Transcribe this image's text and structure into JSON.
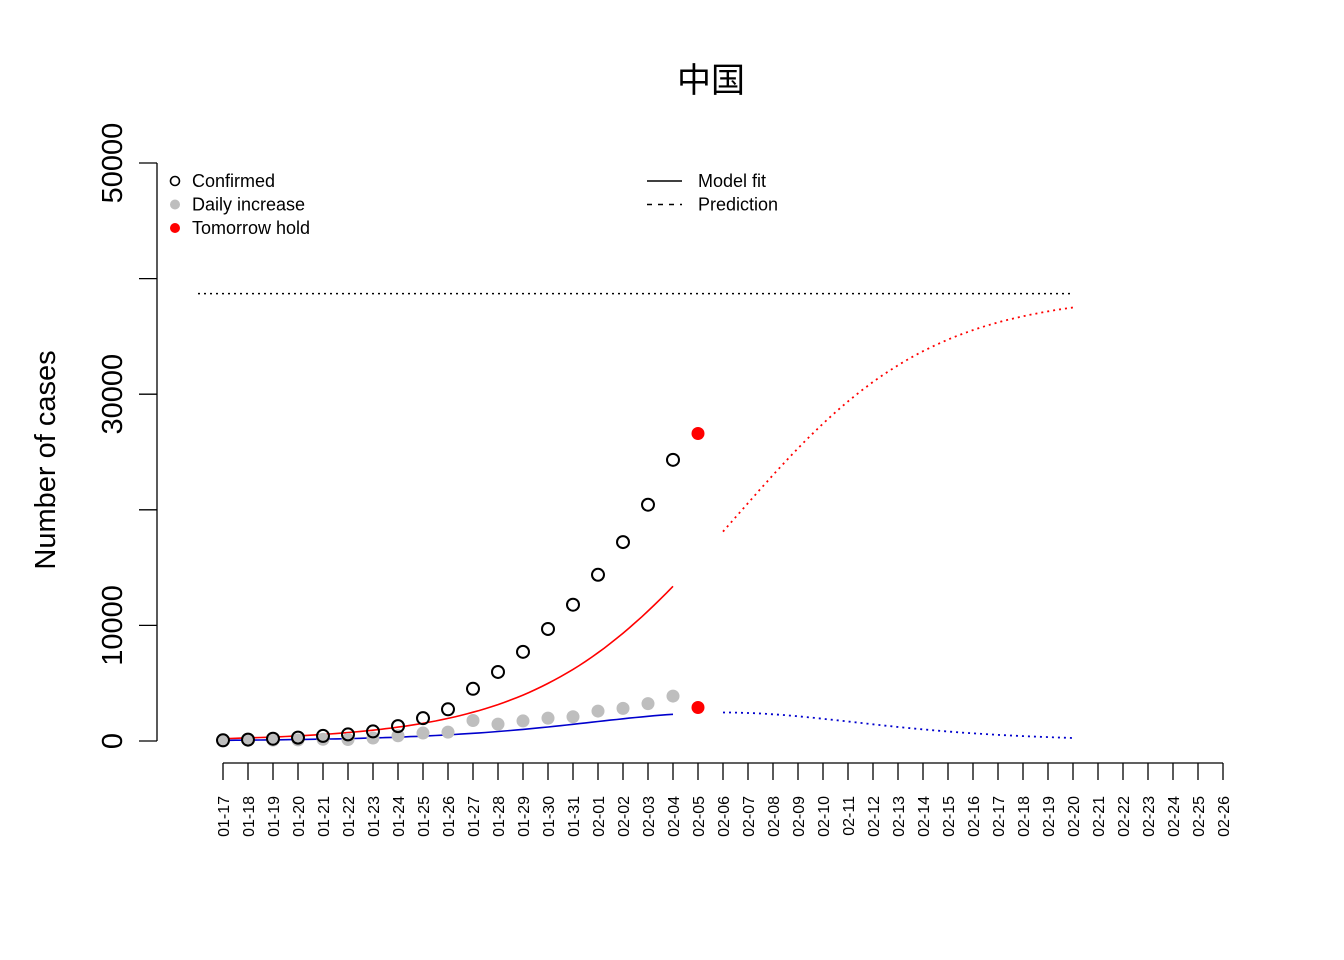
{
  "chart_data": {
    "type": "scatter",
    "title": "中国",
    "ylabel": "Number of cases",
    "xlabel": "",
    "ylim": [
      0,
      50000
    ],
    "y_ticks": [
      0,
      10000,
      30000,
      50000
    ],
    "y_minor_ticks": [
      20000,
      40000
    ],
    "y_tick_labels": [
      "0",
      "10000",
      "30000",
      "50000"
    ],
    "x_tick_labels": [
      "01-17",
      "01-18",
      "01-19",
      "01-20",
      "01-21",
      "01-22",
      "01-23",
      "01-24",
      "01-25",
      "01-26",
      "01-27",
      "01-28",
      "01-29",
      "01-30",
      "01-31",
      "02-01",
      "02-02",
      "02-03",
      "02-04",
      "02-05",
      "02-06",
      "02-07",
      "02-08",
      "02-09",
      "02-10",
      "02-11",
      "02-12",
      "02-13",
      "02-14",
      "02-15",
      "02-16",
      "02-17",
      "02-18",
      "02-19",
      "02-20",
      "02-21",
      "02-22",
      "02-23",
      "02-24",
      "02-25",
      "02-26"
    ],
    "grid": false,
    "legend_left": {
      "placement": "top-left",
      "entries": [
        {
          "label": "Confirmed",
          "marker": "open-circle",
          "color": "#000000"
        },
        {
          "label": "Daily increase",
          "marker": "filled-circle",
          "color": "#bebebe"
        },
        {
          "label": "Tomorrow hold",
          "marker": "filled-circle",
          "color": "#ff0000"
        }
      ]
    },
    "legend_right": {
      "placement": "top-center",
      "entries": [
        {
          "label": "Model fit",
          "line": "solid"
        },
        {
          "label": "Prediction",
          "line": "dashed"
        }
      ]
    },
    "confirmed": {
      "x": [
        "01-17",
        "01-18",
        "01-19",
        "01-20",
        "01-21",
        "01-22",
        "01-23",
        "01-24",
        "01-25",
        "01-26",
        "01-27",
        "01-28",
        "01-29",
        "01-30",
        "01-31",
        "02-01",
        "02-02",
        "02-03",
        "02-04"
      ],
      "values": [
        62,
        121,
        198,
        291,
        440,
        571,
        830,
        1287,
        1975,
        2744,
        4515,
        5974,
        7711,
        9692,
        11791,
        14380,
        17205,
        20438,
        24324
      ]
    },
    "daily_increase": {
      "x": [
        "01-17",
        "01-18",
        "01-19",
        "01-20",
        "01-21",
        "01-22",
        "01-23",
        "01-24",
        "01-25",
        "01-26",
        "01-27",
        "01-28",
        "01-29",
        "01-30",
        "01-31",
        "02-01",
        "02-02",
        "02-03",
        "02-04"
      ],
      "values": [
        0,
        59,
        77,
        93,
        149,
        131,
        259,
        457,
        688,
        769,
        1771,
        1459,
        1737,
        1981,
        2099,
        2589,
        2825,
        3233,
        3886
      ],
      "color": "#bebebe"
    },
    "tomorrow_hold": {
      "x": "02-05",
      "confirmed": 26600,
      "daily": 2900,
      "color": "#ff0000"
    },
    "asymptote": {
      "value": 38700,
      "x_from": "01-16",
      "x_to": "02-20",
      "style": "dotted",
      "color": "#000000"
    },
    "confirmed_fit": {
      "model": "logistic",
      "K": 38700,
      "r": 0.255,
      "t0": 20.5,
      "fit_x_from": "01-17",
      "fit_x_to": "02-04",
      "pred_x_from": "02-06",
      "pred_x_to": "02-20",
      "color": "#ff0000"
    },
    "daily_fit": {
      "model": "logistic-derivative",
      "fit_x_from": "01-17",
      "fit_x_to": "02-04",
      "pred_x_from": "02-06",
      "pred_x_to": "02-20",
      "color": "#0000cd"
    }
  }
}
